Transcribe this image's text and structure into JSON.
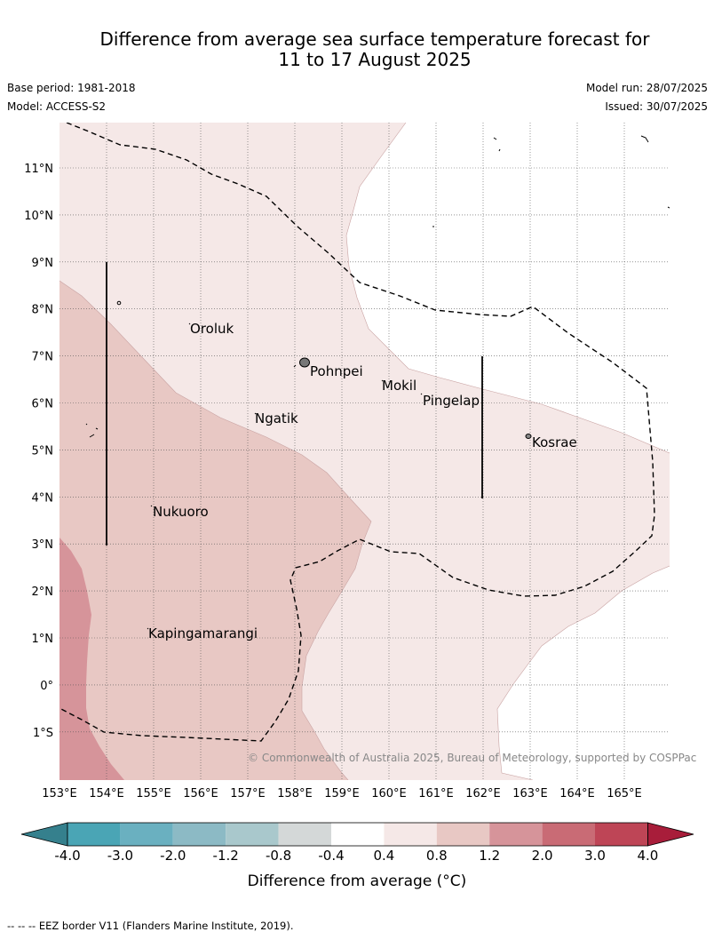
{
  "header": {
    "title_line1": "Difference from average sea surface temperature forecast for",
    "title_line2": "11 to 17 August 2025",
    "base_period": "Base period: 1981-2018",
    "model": "Model: ACCESS-S2",
    "model_run": "Model run: 28/07/2025",
    "issued": "Issued: 30/07/2025"
  },
  "map": {
    "lat_labels": [
      "11°N",
      "10°N",
      "9°N",
      "8°N",
      "7°N",
      "6°N",
      "5°N",
      "4°N",
      "3°N",
      "2°N",
      "1°N",
      "0°",
      "1°S"
    ],
    "lon_labels": [
      "153°E",
      "154°E",
      "155°E",
      "156°E",
      "157°E",
      "158°E",
      "159°E",
      "160°E",
      "161°E",
      "162°E",
      "163°E",
      "164°E",
      "165°E"
    ],
    "places": [
      "Oroluk",
      "Pohnpei",
      "Mokil",
      "Pingelap",
      "Ngatik",
      "Kosrae",
      "Nukuoro",
      "Kapingamarangi"
    ],
    "copyright": "© Commonwealth of Australia 2025, Bureau of Meteorology, supported by COSPPac",
    "colors": {
      "anomaly_0_4_0_8": "#f5e8e7",
      "anomaly_0_8_1_2": "#e8c8c4",
      "anomaly_1_2_2_0": "#d6949a",
      "eez_border": "#000000"
    }
  },
  "colorbar": {
    "ticks": [
      "-4.0",
      "-3.0",
      "-2.0",
      "-1.2",
      "-0.8",
      "-0.4",
      "0.4",
      "0.8",
      "1.2",
      "2.0",
      "3.0",
      "4.0"
    ],
    "colors": [
      "#4aa5b5",
      "#6ab0c0",
      "#8cbac5",
      "#a9c8cc",
      "#d4d8d8",
      "#ffffff",
      "#f5e8e7",
      "#e8c8c4",
      "#d6949a",
      "#c96b75",
      "#be4556"
    ],
    "under_color": "#35808d",
    "over_color": "#a81d3a",
    "label": "Difference from average (°C)"
  },
  "footer": {
    "eez_note": "--  --  -- EEZ border V11 (Flanders Marine Institute, 2019)."
  }
}
